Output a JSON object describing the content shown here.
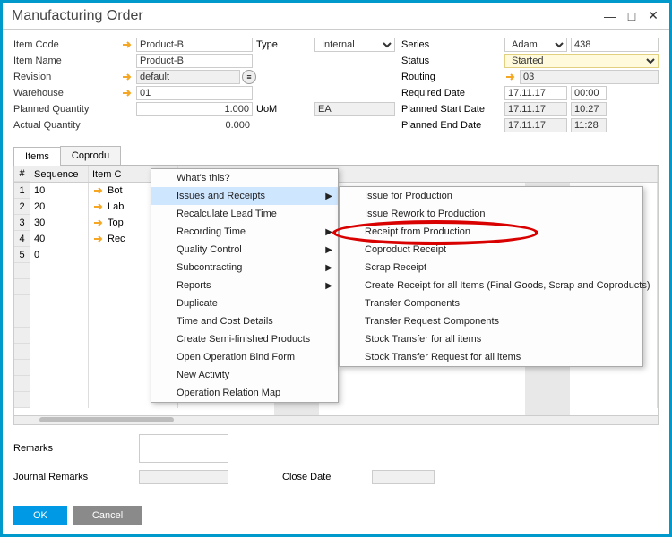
{
  "window": {
    "title": "Manufacturing Order"
  },
  "form": {
    "labels": {
      "itemCode": "Item Code",
      "itemName": "Item Name",
      "revision": "Revision",
      "warehouse": "Warehouse",
      "plannedQty": "Planned Quantity",
      "actualQty": "Actual Quantity",
      "type": "Type",
      "uom": "UoM",
      "series": "Series",
      "status": "Status",
      "routing": "Routing",
      "requiredDate": "Required Date",
      "plannedStart": "Planned Start Date",
      "plannedEnd": "Planned End Date"
    },
    "values": {
      "itemCode": "Product-B",
      "itemName": "Product-B",
      "revision": "default",
      "warehouse": "01",
      "plannedQty": "1.000",
      "actualQty": "0.000",
      "type": "Internal",
      "uom": "EA",
      "seriesName": "Adam",
      "seriesNo": "438",
      "status": "Started",
      "routing": "03",
      "requiredDate": "17.11.17",
      "requiredTime": "00:00",
      "plannedStartDate": "17.11.17",
      "plannedStartTime": "10:27",
      "plannedEndDate": "17.11.17",
      "plannedEndTime": "11:28"
    }
  },
  "tabs": {
    "items": "Items",
    "coproducts": "Coprodu"
  },
  "grid": {
    "headers": {
      "num": "#",
      "sequence": "Sequence",
      "itemCode": "Item C"
    },
    "rows": [
      {
        "n": "1",
        "seq": "10",
        "item": "Bot"
      },
      {
        "n": "2",
        "seq": "20",
        "item": "Lab"
      },
      {
        "n": "3",
        "seq": "30",
        "item": "Top"
      },
      {
        "n": "4",
        "seq": "40",
        "item": "Rec"
      },
      {
        "n": "5",
        "seq": "0",
        "item": ""
      }
    ]
  },
  "bottom": {
    "remarks": "Remarks",
    "journal": "Journal Remarks",
    "closeDate": "Close Date"
  },
  "buttons": {
    "ok": "OK",
    "cancel": "Cancel"
  },
  "ctx_main": [
    {
      "label": "What's this?"
    },
    {
      "label": "Issues and Receipts",
      "sub": true,
      "hover": true
    },
    {
      "label": "Recalculate Lead Time"
    },
    {
      "label": "Recording Time",
      "sub": true
    },
    {
      "label": "Quality Control",
      "sub": true
    },
    {
      "label": "Subcontracting",
      "sub": true
    },
    {
      "label": "Reports",
      "sub": true
    },
    {
      "label": "Duplicate"
    },
    {
      "label": "Time and Cost Details"
    },
    {
      "label": "Create Semi-finished Products"
    },
    {
      "label": "Open Operation Bind Form"
    },
    {
      "label": "New Activity"
    },
    {
      "label": "Operation Relation Map"
    }
  ],
  "ctx_sub": [
    "Issue for Production",
    "Issue Rework to Production",
    "Receipt from Production",
    "Coproduct Receipt",
    "Scrap Receipt",
    "Create Receipt for all Items (Final Goods, Scrap and Coproducts)",
    "Transfer Components",
    "Transfer Request Components",
    "Stock Transfer for all items",
    "Stock Transfer Request for all items"
  ],
  "colors": {
    "accent": "#0099cc",
    "linkArrow": "#f5a623",
    "highlight": "#d90000"
  }
}
